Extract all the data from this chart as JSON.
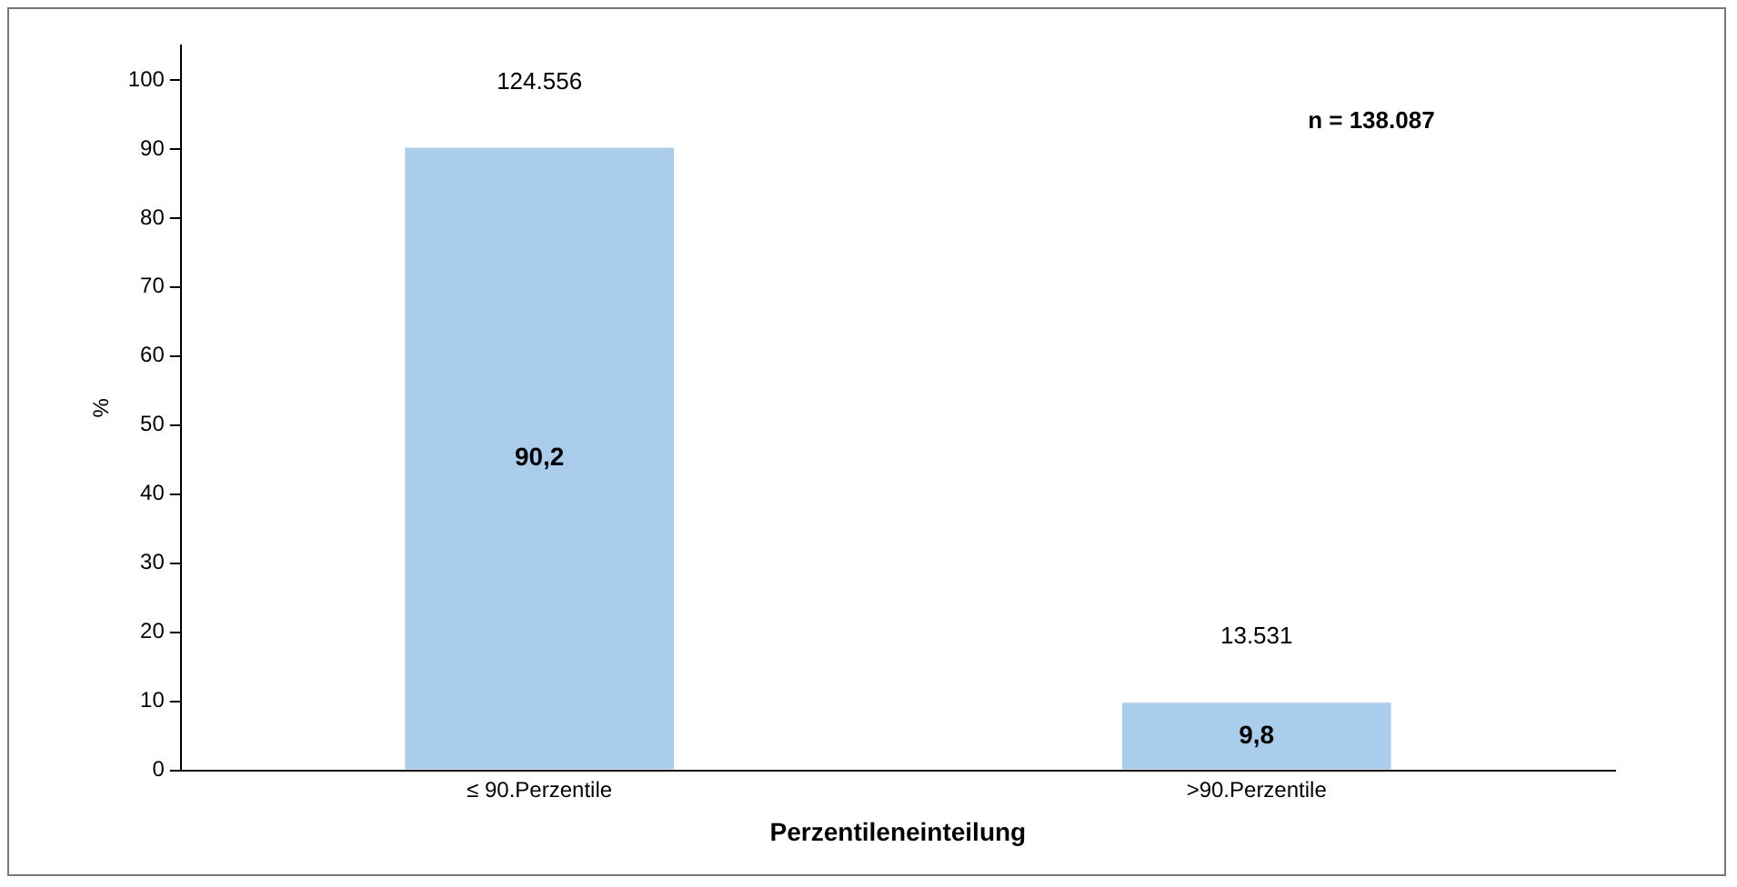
{
  "chart_data": {
    "type": "bar",
    "xlabel": "Perzentileneinteilung",
    "ylabel": "%",
    "categories": [
      "≤ 90.Perzentile",
      ">90.Perzentile"
    ],
    "values": [
      90.2,
      9.8
    ],
    "value_labels": [
      "90,2",
      "9,8"
    ],
    "color": "#abcdec",
    "ylim": [
      0,
      105
    ],
    "yticks": [
      0,
      10,
      20,
      30,
      40,
      50,
      60,
      70,
      80,
      90,
      100
    ],
    "grid": false,
    "legend": false,
    "annotations": [
      {
        "text": "124.556",
        "x": "≤ 90.Perzentile",
        "y": 90.2
      },
      {
        "text": "13.531",
        "x": ">90.Perzentile",
        "y": 9.8
      },
      "n = 138.087"
    ]
  }
}
